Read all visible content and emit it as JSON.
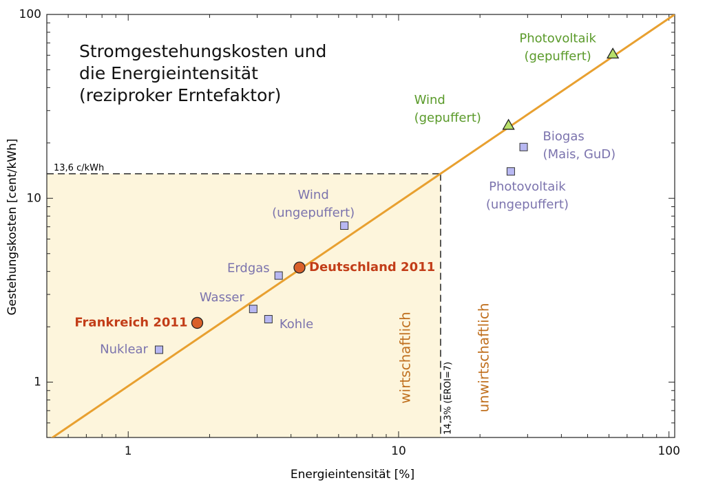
{
  "chart_data": {
    "type": "scatter",
    "title": [
      "Stromgestehungskosten und",
      "die Energieintensität",
      "(reziproker Erntefaktor)"
    ],
    "x_label": "Energieintensität [%]",
    "y_label": "Gestehungskosten [cent/kWh]",
    "xlog": true,
    "ylog": true,
    "xlim": [
      0.5,
      105
    ],
    "ylim": [
      0.5,
      100
    ],
    "xticks": [
      1,
      10,
      100
    ],
    "yticks": [
      1,
      10,
      100
    ],
    "xminorticks": [
      0.6,
      0.7,
      0.8,
      0.9,
      2,
      3,
      4,
      5,
      6,
      7,
      8,
      9,
      20,
      30,
      40,
      50,
      60,
      70,
      80,
      90
    ],
    "yminorticks": [
      0.6,
      0.7,
      0.8,
      0.9,
      2,
      3,
      4,
      5,
      6,
      7,
      8,
      9,
      20,
      30,
      40,
      50,
      60,
      70,
      80,
      90
    ],
    "fit_line": {
      "color": "#e8a030",
      "x": [
        0.5,
        105
      ],
      "y": [
        0.476,
        100
      ]
    },
    "threshold": {
      "x": 14.3,
      "y": 13.6,
      "x_label": "14,3% (EROI=7)",
      "y_label": "13,6 c/kWh",
      "fill": "#fdf5dc"
    },
    "regions": [
      "wirtschaftlich",
      "unwirtschaftlich"
    ],
    "region_color": "#c0701f",
    "series": [
      {
        "marker": "square",
        "color": "#b8b8f2",
        "label_color": "#7b73ad",
        "points": [
          {
            "label": [
              "Nuklear"
            ],
            "x": 1.3,
            "y": 1.5
          },
          {
            "label": [
              "Wasser"
            ],
            "x": 2.9,
            "y": 2.5
          },
          {
            "label": [
              "Kohle"
            ],
            "x": 3.3,
            "y": 2.2
          },
          {
            "label": [
              "Erdgas"
            ],
            "x": 3.6,
            "y": 3.8
          },
          {
            "label": [
              "Wind",
              "(ungepuffert)"
            ],
            "x": 6.3,
            "y": 7.1
          },
          {
            "label": [
              "Photovoltaik",
              "(ungepuffert)"
            ],
            "x": 26,
            "y": 14
          },
          {
            "label": [
              "Biogas",
              "(Mais, GuD)"
            ],
            "x": 29,
            "y": 19
          }
        ]
      },
      {
        "marker": "circle",
        "color": "#d9602a",
        "label_color": "#c23d18",
        "points": [
          {
            "label": [
              "Frankreich 2011"
            ],
            "x": 1.8,
            "y": 2.1
          },
          {
            "label": [
              "Deutschland 2011"
            ],
            "x": 4.3,
            "y": 4.2
          }
        ]
      },
      {
        "marker": "triangle",
        "color": "#b8e06a",
        "label_color": "#5a9a2a",
        "points": [
          {
            "label": [
              "Wind",
              "(gepuffert)"
            ],
            "x": 25.5,
            "y": 25
          },
          {
            "label": [
              "Photovoltaik",
              "(gepuffert)"
            ],
            "x": 62,
            "y": 61
          }
        ]
      }
    ]
  }
}
